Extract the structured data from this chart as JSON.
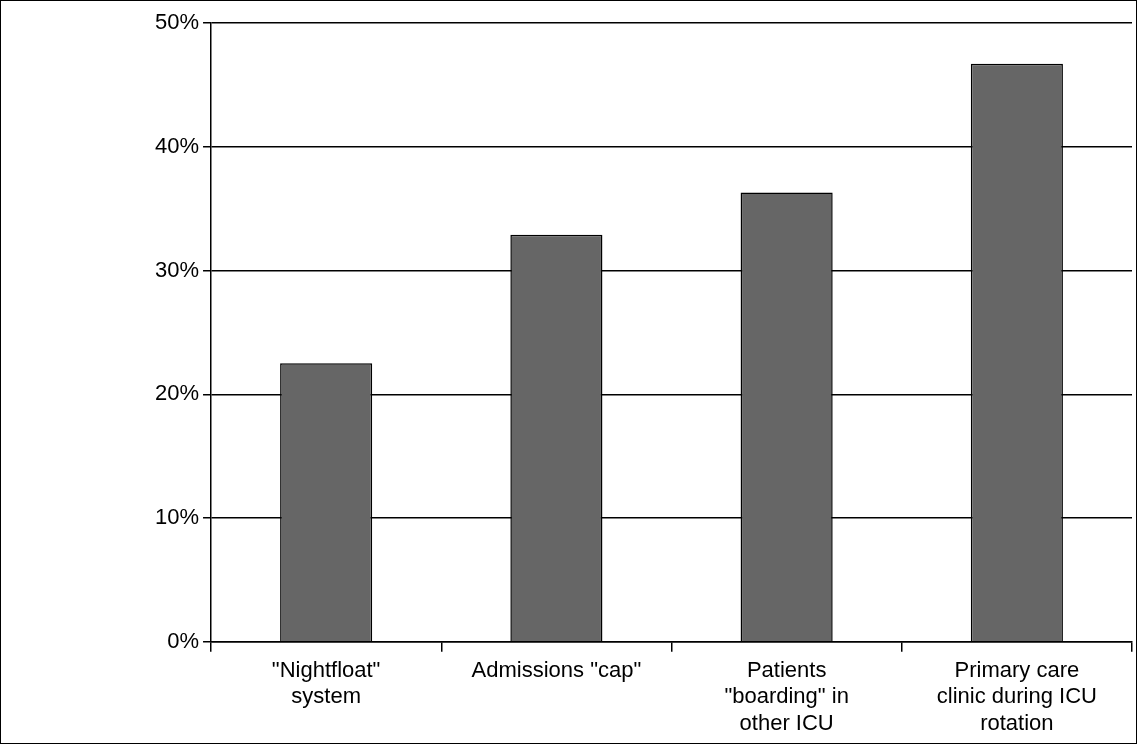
{
  "chart_data": {
    "type": "bar",
    "categories": [
      "\"Nightfloat\" system",
      "Admissions \"cap\"",
      "Patients \"boarding\" in other ICU",
      "Primary care clinic during ICU rotation"
    ],
    "values": [
      22.5,
      32.9,
      36.3,
      46.7
    ],
    "color": "#666666",
    "ylim": [
      0,
      50
    ],
    "yticks": [
      {
        "value": 0,
        "label": "0%"
      },
      {
        "value": 10,
        "label": "10%"
      },
      {
        "value": 20,
        "label": "20%"
      },
      {
        "value": 30,
        "label": "30%"
      },
      {
        "value": 40,
        "label": "40%"
      },
      {
        "value": 50,
        "label": "50%"
      }
    ],
    "grid": "y"
  }
}
